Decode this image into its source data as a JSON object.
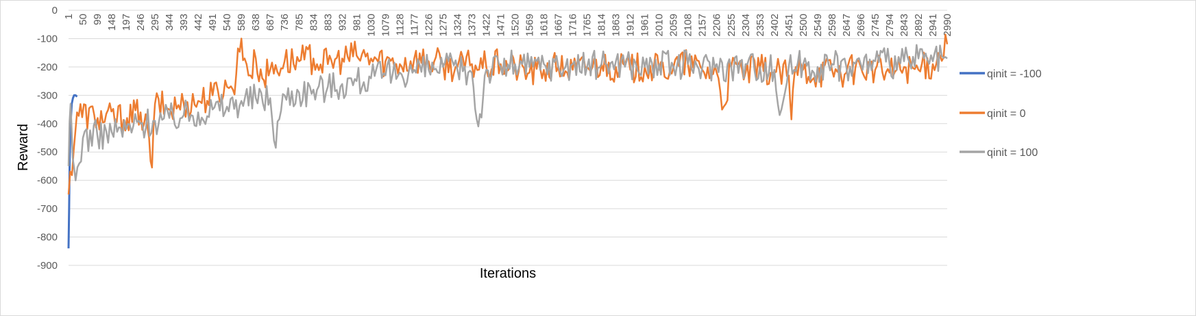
{
  "chart_data": {
    "type": "line",
    "title": "",
    "xlabel": "Iterations",
    "ylabel": "Reward",
    "ylim": [
      -900,
      0
    ],
    "y_ticks": [
      0,
      -100,
      -200,
      -300,
      -400,
      -500,
      -600,
      -700,
      -800,
      -900
    ],
    "x_range": [
      1,
      2990
    ],
    "x_tick_labels": [
      "1",
      "50",
      "99",
      "148",
      "197",
      "246",
      "295",
      "344",
      "393",
      "442",
      "491",
      "540",
      "589",
      "638",
      "687",
      "736",
      "785",
      "834",
      "883",
      "932",
      "981",
      "1030",
      "1079",
      "1128",
      "1177",
      "1226",
      "1275",
      "1324",
      "1373",
      "1422",
      "1471",
      "1520",
      "1569",
      "1618",
      "1667",
      "1716",
      "1765",
      "1814",
      "1863",
      "1912",
      "1961",
      "2010",
      "2059",
      "2108",
      "2157",
      "2206",
      "2255",
      "2304",
      "2353",
      "2402",
      "2451",
      "2500",
      "2549",
      "2598",
      "2647",
      "2696",
      "2745",
      "2794",
      "2843",
      "2892",
      "2941",
      "2990"
    ],
    "grid": "horizontal",
    "legend_position": "right",
    "series": [
      {
        "name": "qinit = -100",
        "color": "#4472c4",
        "points": [
          [
            1,
            -840
          ],
          [
            3,
            -690
          ],
          [
            5,
            -520
          ],
          [
            8,
            -400
          ],
          [
            12,
            -330
          ],
          [
            16,
            -310
          ],
          [
            20,
            -300
          ],
          [
            25,
            -300
          ],
          [
            30,
            -305
          ]
        ]
      },
      {
        "name": "qinit = 0",
        "color": "#ed7d31",
        "points": [
          [
            1,
            -650
          ],
          [
            30,
            -360
          ],
          [
            100,
            -380
          ],
          [
            200,
            -380
          ],
          [
            246,
            -360
          ],
          [
            275,
            -450
          ],
          [
            285,
            -555
          ],
          [
            295,
            -330
          ],
          [
            344,
            -350
          ],
          [
            393,
            -330
          ],
          [
            442,
            -320
          ],
          [
            491,
            -300
          ],
          [
            540,
            -270
          ],
          [
            560,
            -280
          ],
          [
            589,
            -100
          ],
          [
            600,
            -170
          ],
          [
            620,
            -230
          ],
          [
            638,
            -170
          ],
          [
            660,
            -240
          ],
          [
            687,
            -210
          ],
          [
            736,
            -180
          ],
          [
            785,
            -180
          ],
          [
            834,
            -170
          ],
          [
            883,
            -190
          ],
          [
            932,
            -170
          ],
          [
            981,
            -160
          ],
          [
            1030,
            -170
          ],
          [
            1079,
            -180
          ],
          [
            1128,
            -190
          ],
          [
            1177,
            -170
          ],
          [
            1226,
            -180
          ],
          [
            1275,
            -190
          ],
          [
            1324,
            -200
          ],
          [
            1373,
            -190
          ],
          [
            1422,
            -200
          ],
          [
            1471,
            -190
          ],
          [
            1520,
            -200
          ],
          [
            1569,
            -220
          ],
          [
            1618,
            -210
          ],
          [
            1667,
            -200
          ],
          [
            1716,
            -210
          ],
          [
            1765,
            -200
          ],
          [
            1814,
            -190
          ],
          [
            1863,
            -200
          ],
          [
            1912,
            -210
          ],
          [
            1961,
            -200
          ],
          [
            2010,
            -210
          ],
          [
            2059,
            -200
          ],
          [
            2108,
            -190
          ],
          [
            2157,
            -210
          ],
          [
            2206,
            -220
          ],
          [
            2230,
            -340
          ],
          [
            2255,
            -200
          ],
          [
            2304,
            -220
          ],
          [
            2353,
            -210
          ],
          [
            2402,
            -220
          ],
          [
            2451,
            -230
          ],
          [
            2460,
            -385
          ],
          [
            2475,
            -200
          ],
          [
            2500,
            -210
          ],
          [
            2549,
            -220
          ],
          [
            2598,
            -210
          ],
          [
            2647,
            -220
          ],
          [
            2696,
            -200
          ],
          [
            2745,
            -210
          ],
          [
            2794,
            -220
          ],
          [
            2843,
            -200
          ],
          [
            2892,
            -210
          ],
          [
            2941,
            -190
          ],
          [
            2990,
            -120
          ]
        ]
      },
      {
        "name": "qinit = 100",
        "color": "#a5a5a5",
        "points": [
          [
            1,
            -550
          ],
          [
            8,
            -330
          ],
          [
            15,
            -520
          ],
          [
            25,
            -600
          ],
          [
            50,
            -450
          ],
          [
            99,
            -440
          ],
          [
            148,
            -430
          ],
          [
            197,
            -420
          ],
          [
            246,
            -400
          ],
          [
            295,
            -390
          ],
          [
            344,
            -380
          ],
          [
            393,
            -370
          ],
          [
            442,
            -360
          ],
          [
            491,
            -350
          ],
          [
            540,
            -340
          ],
          [
            589,
            -320
          ],
          [
            638,
            -310
          ],
          [
            687,
            -310
          ],
          [
            700,
            -460
          ],
          [
            736,
            -300
          ],
          [
            785,
            -290
          ],
          [
            834,
            -280
          ],
          [
            883,
            -270
          ],
          [
            932,
            -260
          ],
          [
            981,
            -250
          ],
          [
            1030,
            -240
          ],
          [
            1079,
            -230
          ],
          [
            1128,
            -220
          ],
          [
            1177,
            -210
          ],
          [
            1226,
            -210
          ],
          [
            1275,
            -200
          ],
          [
            1324,
            -210
          ],
          [
            1373,
            -220
          ],
          [
            1395,
            -410
          ],
          [
            1422,
            -210
          ],
          [
            1471,
            -200
          ],
          [
            1520,
            -190
          ],
          [
            1569,
            -200
          ],
          [
            1618,
            -190
          ],
          [
            1667,
            -200
          ],
          [
            1716,
            -190
          ],
          [
            1765,
            -200
          ],
          [
            1814,
            -190
          ],
          [
            1863,
            -180
          ],
          [
            1912,
            -190
          ],
          [
            1961,
            -200
          ],
          [
            2010,
            -190
          ],
          [
            2059,
            -200
          ],
          [
            2108,
            -190
          ],
          [
            2157,
            -200
          ],
          [
            2206,
            -190
          ],
          [
            2255,
            -200
          ],
          [
            2304,
            -190
          ],
          [
            2353,
            -200
          ],
          [
            2402,
            -210
          ],
          [
            2420,
            -370
          ],
          [
            2451,
            -200
          ],
          [
            2500,
            -190
          ],
          [
            2549,
            -200
          ],
          [
            2598,
            -190
          ],
          [
            2647,
            -200
          ],
          [
            2696,
            -190
          ],
          [
            2745,
            -180
          ],
          [
            2794,
            -190
          ],
          [
            2843,
            -180
          ],
          [
            2892,
            -170
          ],
          [
            2941,
            -180
          ],
          [
            2990,
            -170
          ]
        ]
      }
    ]
  }
}
